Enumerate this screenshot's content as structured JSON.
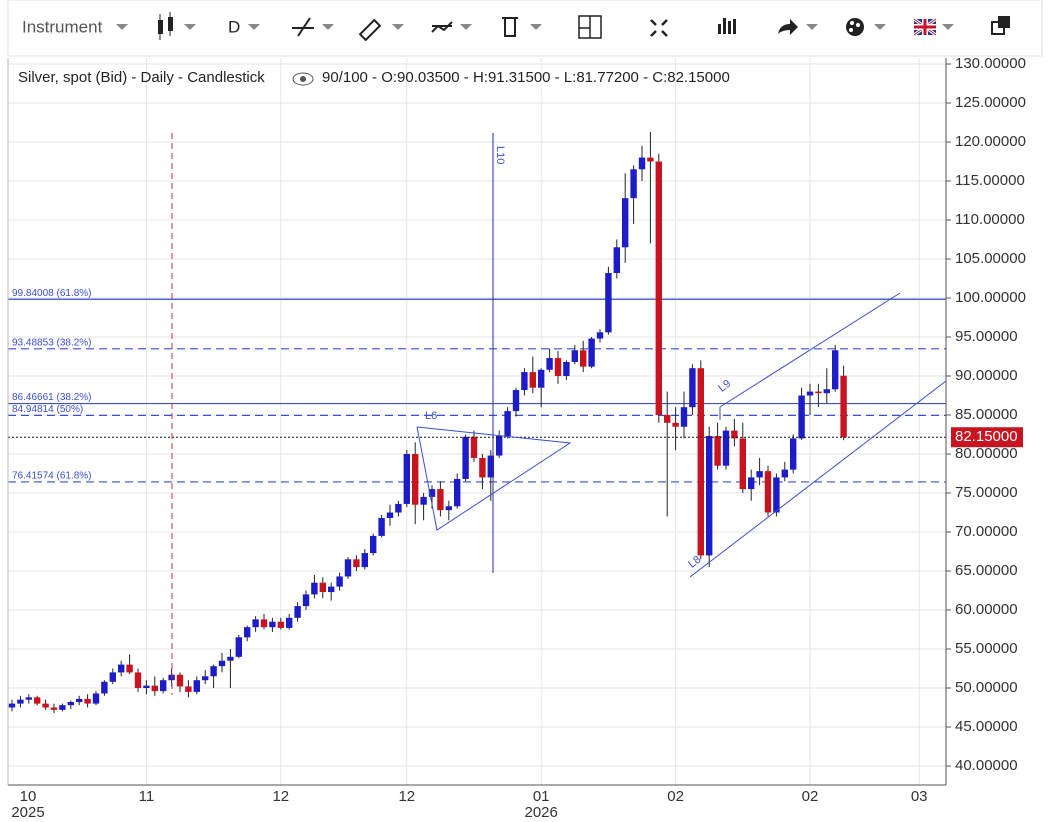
{
  "toolbar": {
    "instrument": "Instrument",
    "period": "D"
  },
  "chart_data": {
    "type": "candlestick",
    "legend_title": "Silver, spot (Bid) - Daily - Candlestick",
    "legend_values": "90/100 - O:90.03500 - H:91.31500 - L:81.77200 - C:82.15000",
    "up_color": "#1c1cc8",
    "down_color": "#c8141e",
    "categories": [
      "10",
      null,
      null,
      null,
      null,
      null,
      null,
      null,
      null,
      null,
      null,
      null,
      null,
      null,
      null,
      null,
      "11",
      null,
      null,
      null,
      null,
      null,
      null,
      null,
      null,
      null,
      null,
      null,
      null,
      null,
      null,
      null,
      "12",
      null,
      null,
      null,
      null,
      null,
      null,
      null,
      null,
      null,
      null,
      null,
      null,
      null,
      null,
      "12",
      null,
      null,
      null,
      null,
      null,
      null,
      null,
      null,
      null,
      null,
      null,
      null,
      null,
      null,
      null,
      "01",
      null,
      null,
      null,
      null,
      null,
      null,
      null,
      null,
      null,
      null,
      null,
      null,
      null,
      null,
      null,
      "02",
      null,
      null,
      null,
      null,
      null,
      null,
      null,
      null,
      null,
      null,
      null,
      null,
      null,
      null,
      null,
      "02",
      null,
      null,
      null,
      null,
      null,
      null,
      null,
      null,
      null,
      null,
      null,
      null,
      "03"
    ],
    "year_labels": [
      "2025",
      null,
      null,
      null,
      null,
      null,
      null,
      null,
      null,
      null,
      null,
      null,
      null,
      null,
      null,
      null,
      null,
      null,
      null,
      null,
      null,
      null,
      null,
      null,
      null,
      null,
      null,
      null,
      null,
      null,
      null,
      null,
      null,
      null,
      null,
      null,
      null,
      null,
      null,
      null,
      null,
      null,
      null,
      null,
      null,
      null,
      null,
      null,
      null,
      null,
      null,
      null,
      null,
      null,
      null,
      null,
      null,
      null,
      null,
      null,
      null,
      null,
      null,
      "2026",
      null,
      null,
      null,
      null,
      null,
      null,
      null,
      null,
      null,
      null,
      null,
      null,
      null,
      null,
      null,
      null,
      null,
      null,
      null,
      null,
      null,
      null,
      null,
      null,
      null,
      null,
      null,
      null,
      null,
      null,
      null,
      null,
      null,
      null,
      null,
      null,
      null,
      null,
      null,
      null,
      null,
      null,
      null,
      null,
      null
    ],
    "open": [
      47.5,
      48,
      48.5,
      48.8,
      48,
      47.5,
      47.2,
      47.8,
      48.2,
      48.6,
      48,
      49.3,
      50.8,
      52,
      53,
      52,
      50,
      50.3,
      49.6,
      51,
      51.7,
      50.2,
      49.5,
      51,
      51.5,
      52.8,
      53.5,
      54,
      56.5,
      57.8,
      58.8,
      57.8,
      58.5,
      57.7,
      59,
      60.5,
      62,
      63.5,
      62.3,
      63,
      64.3,
      66.5,
      65.5,
      67.3,
      69.5,
      71.8,
      72.5,
      73.6,
      80,
      73.5,
      74.5,
      75.5,
      72.8,
      73.3,
      76.8,
      82.2,
      79.5,
      77,
      79.8,
      82.3,
      85.5,
      88.2,
      90.5,
      88.5,
      90.8,
      92.3,
      90,
      91.8,
      93.3,
      91.2,
      94.8,
      95.6,
      103.2,
      106.5,
      112.8,
      116.5,
      118,
      117.5,
      85,
      84,
      83.5,
      86,
      91,
      67,
      82.3,
      78.5,
      83,
      82,
      75.5,
      77,
      77.8,
      72.5,
      77,
      78,
      82,
      87.5,
      88,
      87.8,
      88.3,
      90.035,
      null,
      null,
      null,
      null,
      null,
      null,
      null,
      null,
      null
    ],
    "high": [
      48.5,
      49,
      49.2,
      49,
      48.5,
      48,
      48,
      48.4,
      49,
      49.2,
      49.6,
      51,
      52.5,
      53.5,
      54.3,
      52.5,
      51,
      51.5,
      51.3,
      52.5,
      52,
      51,
      51.5,
      52.3,
      53,
      54.5,
      55,
      56.8,
      58,
      59.2,
      59.5,
      59,
      59,
      59.5,
      61,
      62.5,
      64.5,
      64.2,
      63.5,
      64.8,
      66.8,
      67,
      67.8,
      69.8,
      72.2,
      73.5,
      74,
      80.5,
      81.5,
      75,
      76,
      76.5,
      74,
      77.5,
      82.5,
      83,
      80,
      80.5,
      83,
      86,
      88.5,
      91,
      92.5,
      91,
      93.5,
      93.2,
      92,
      94,
      94.5,
      95,
      96,
      104,
      107.5,
      116,
      117,
      119.5,
      121.3,
      118.5,
      88,
      86,
      88,
      91.5,
      92,
      83.5,
      84,
      83.5,
      84.5,
      84,
      78,
      79.5,
      78.5,
      77.5,
      79,
      82.5,
      88.5,
      89,
      89,
      91,
      94,
      91.315,
      null,
      null,
      null,
      null,
      null,
      null,
      null,
      null,
      null
    ],
    "low": [
      47,
      47.5,
      48,
      47.8,
      47.2,
      46.8,
      47,
      47.3,
      47.8,
      47.5,
      47.8,
      49,
      50.5,
      51.5,
      51.8,
      49.5,
      49.2,
      49,
      49.3,
      50.2,
      49.5,
      48.8,
      49.2,
      50.5,
      50,
      52,
      50,
      53.8,
      56,
      57.2,
      57.5,
      57.2,
      57.5,
      57.5,
      58.5,
      60,
      61.5,
      61.5,
      61.2,
      62.5,
      64,
      65,
      65.2,
      67,
      69.3,
      70.8,
      72,
      73.2,
      71,
      71.5,
      73,
      72,
      71.5,
      73,
      76.5,
      79,
      75.5,
      74,
      79.5,
      82,
      84.8,
      87.5,
      87.8,
      86,
      90.5,
      89,
      89.5,
      91.5,
      90.5,
      91,
      94.3,
      95.3,
      102.5,
      104.5,
      109.5,
      115,
      107,
      84,
      72,
      80.5,
      82,
      85,
      66.5,
      65.5,
      78,
      78,
      81,
      75,
      74,
      76,
      72,
      72,
      76.5,
      77.5,
      81.8,
      85,
      86,
      86.5,
      88,
      81.772,
      null,
      null,
      null,
      null,
      null,
      null,
      null,
      null,
      null
    ],
    "close": [
      48,
      48.5,
      48.8,
      48,
      47.5,
      47.2,
      47.8,
      48.2,
      48.6,
      48,
      49.3,
      50.8,
      52,
      53,
      52,
      50,
      50.3,
      49.6,
      51,
      51.7,
      50.2,
      49.5,
      51,
      51.5,
      52.8,
      53.5,
      54,
      56.5,
      57.8,
      58.8,
      57.8,
      58.5,
      57.7,
      59,
      60.5,
      62,
      63.5,
      62.3,
      63,
      64.3,
      66.5,
      65.5,
      67.3,
      69.5,
      71.8,
      72.5,
      73.6,
      80,
      73.5,
      74.5,
      75.5,
      72.8,
      73.3,
      76.8,
      82.2,
      79.5,
      77,
      79.8,
      82.3,
      85.5,
      88.2,
      90.5,
      88.5,
      90.8,
      92.3,
      90,
      91.8,
      93.3,
      91.2,
      94.8,
      95.6,
      103.2,
      106.5,
      112.8,
      116.5,
      118,
      117.5,
      85,
      84,
      83.5,
      86,
      91,
      67,
      82.3,
      78.5,
      83,
      82,
      75.5,
      77,
      77.8,
      72.5,
      77,
      78,
      82,
      87.5,
      88,
      87.8,
      88.3,
      93.3,
      82.15,
      null,
      null,
      null,
      null,
      null,
      null,
      null,
      null,
      null
    ],
    "ylim": [
      37.5,
      132.5
    ],
    "yticks": [
      {
        "value": 40,
        "label": "40.00000"
      },
      {
        "value": 45,
        "label": "45.00000"
      },
      {
        "value": 50,
        "label": "50.00000"
      },
      {
        "value": 55,
        "label": "55.00000"
      },
      {
        "value": 60,
        "label": "60.00000"
      },
      {
        "value": 65,
        "label": "65.00000"
      },
      {
        "value": 70,
        "label": "70.00000"
      },
      {
        "value": 75,
        "label": "75.00000"
      },
      {
        "value": 80,
        "label": "80.00000"
      },
      {
        "value": 85,
        "label": "85.00000"
      },
      {
        "value": 90,
        "label": "90.00000"
      },
      {
        "value": 95,
        "label": "95.00000"
      },
      {
        "value": 100,
        "label": "100.00000"
      },
      {
        "value": 105,
        "label": "105.00000"
      },
      {
        "value": 110,
        "label": "110.00000"
      },
      {
        "value": 115,
        "label": "115.00000"
      },
      {
        "value": 120,
        "label": "120.00000"
      },
      {
        "value": 125,
        "label": "125.00000"
      },
      {
        "value": 130,
        "label": "130.00000"
      }
    ],
    "levels": [
      {
        "value": 99.84008,
        "label": "99.84008 (61.8%)",
        "style": "solid"
      },
      {
        "value": 93.48853,
        "label": "93.48853 (38.2%)",
        "style": "dashed"
      },
      {
        "value": 86.46661,
        "label": "86.46661 (38.2%)",
        "style": "solid"
      },
      {
        "value": 84.94814,
        "label": "84.94814 (50%)",
        "style": "dashed"
      },
      {
        "value": 76.41574,
        "label": "76.41574 (61.8%)",
        "style": "dashed"
      }
    ],
    "last_price": {
      "value": 82.15,
      "label": "82.15000"
    },
    "drawing_labels": [
      "L10",
      "L9",
      "L8",
      "L6"
    ],
    "grid": true
  }
}
